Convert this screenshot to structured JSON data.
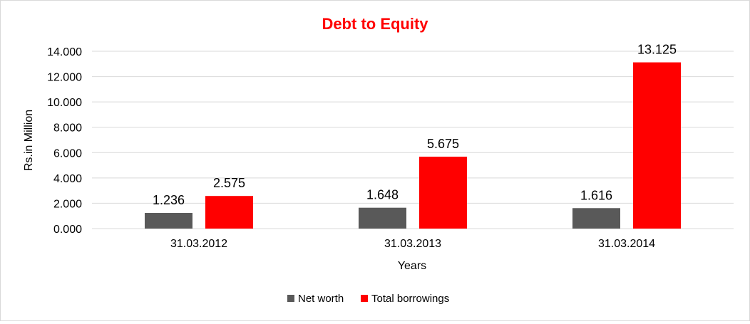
{
  "chart_data": {
    "type": "bar",
    "title": "Debt to Equity",
    "xlabel": "Years",
    "ylabel": "Rs.in Million",
    "categories": [
      "31.03.2012",
      "31.03.2013",
      "31.03.2014"
    ],
    "series": [
      {
        "name": "Net worth",
        "values": [
          1.236,
          1.648,
          1.616
        ],
        "labels": [
          "1.236",
          "1.648",
          "1.616"
        ],
        "color": "#595959"
      },
      {
        "name": "Total borrowings",
        "values": [
          2.575,
          5.675,
          13.125
        ],
        "labels": [
          "2.575",
          "5.675",
          "13.125"
        ],
        "color": "#ff0000"
      }
    ],
    "ylim": [
      0,
      14
    ],
    "yticks": [
      {
        "value": 0,
        "label": "0.000"
      },
      {
        "value": 2,
        "label": "2.000"
      },
      {
        "value": 4,
        "label": "4.000"
      },
      {
        "value": 6,
        "label": "6.000"
      },
      {
        "value": 8,
        "label": "8.000"
      },
      {
        "value": 10,
        "label": "10.000"
      },
      {
        "value": 12,
        "label": "12.000"
      },
      {
        "value": 14,
        "label": "14.000"
      }
    ],
    "grid": true,
    "legend_position": "bottom",
    "title_color": "#ff0000",
    "grid_color": "#d9d9d9"
  }
}
